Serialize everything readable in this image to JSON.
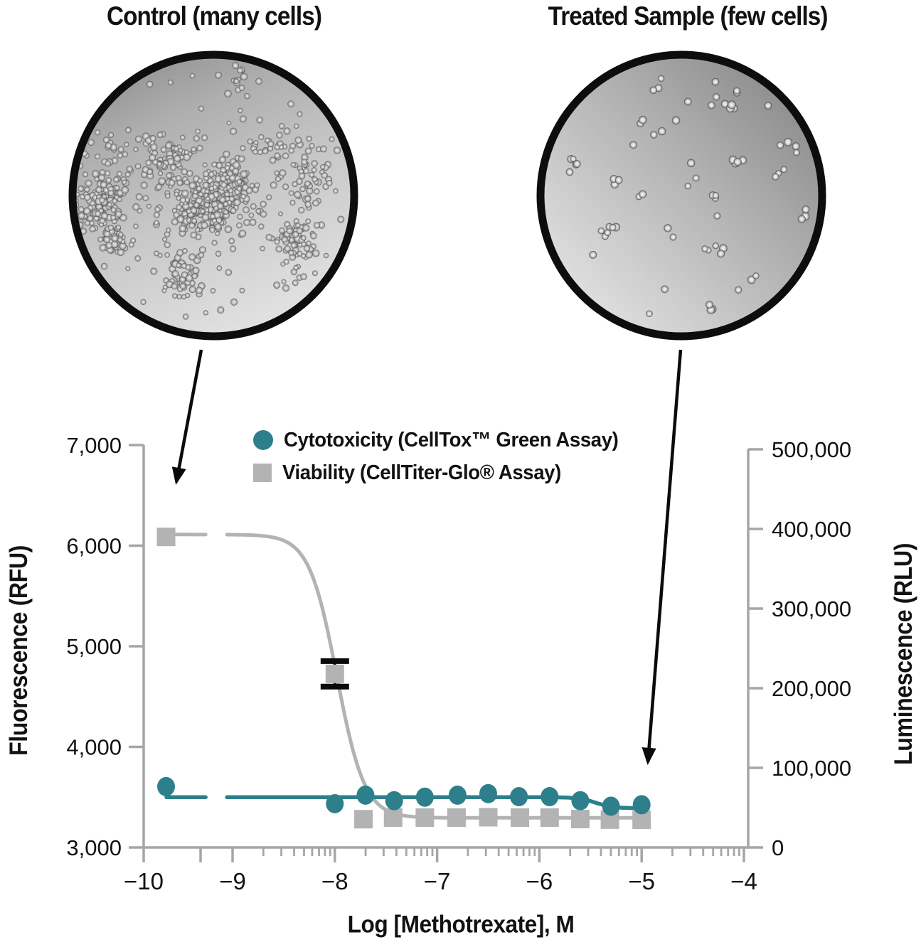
{
  "headers": {
    "control": "Control (many cells)",
    "treated": "Treated Sample (few cells)"
  },
  "legend": {
    "items": [
      {
        "label": "Cytotoxicity (CellTox™ Green Assay)",
        "marker": "circle",
        "color": "#2e7f8c"
      },
      {
        "label": "Viability (CellTiter-Glo® Assay)",
        "marker": "square",
        "color": "#b3b3b3"
      }
    ]
  },
  "chart_data": {
    "type": "scatter",
    "x_axis": {
      "label": "Log [Methotrexate], M",
      "scale": "log10",
      "range": [
        -10,
        -4
      ],
      "tick_values": [
        -10,
        -9,
        -8,
        -7,
        -6,
        -5,
        -4
      ],
      "tick_labels": [
        "−10",
        "−9",
        "−8",
        "−7",
        "−6",
        "−5",
        "−4"
      ],
      "minor_tick_decades": [
        -9,
        -8,
        -7,
        -6,
        -5
      ],
      "axis_break_between": [
        -9.65,
        -9.0
      ]
    },
    "y_left": {
      "label": "Fluorescence (RFU)",
      "range": [
        3000,
        7000
      ],
      "tick_values": [
        3000,
        4000,
        5000,
        6000,
        7000
      ],
      "tick_labels": [
        "3,000",
        "4,000",
        "5,000",
        "6,000",
        "7,000"
      ]
    },
    "y_right": {
      "label": "Luminescence (RLU)",
      "range": [
        0,
        500000
      ],
      "tick_values": [
        0,
        100000,
        200000,
        300000,
        400000,
        500000
      ],
      "tick_labels": [
        "0",
        "100,000",
        "200,000",
        "300,000",
        "400,000",
        "500,000"
      ]
    },
    "series": [
      {
        "name": "Cytotoxicity (CellTox™ Green Assay)",
        "axis": "left",
        "color": "#2e7f8c",
        "marker": "circle",
        "points": [
          [
            -9.65,
            3605
          ],
          [
            -8.0,
            3435
          ],
          [
            -7.7,
            3520
          ],
          [
            -7.42,
            3465
          ],
          [
            -7.12,
            3500
          ],
          [
            -6.8,
            3520
          ],
          [
            -6.5,
            3535
          ],
          [
            -6.2,
            3505
          ],
          [
            -5.9,
            3505
          ],
          [
            -5.6,
            3465
          ],
          [
            -5.3,
            3410
          ],
          [
            -5.0,
            3425
          ]
        ],
        "fit": {
          "top": 3500,
          "bottom": 3390,
          "log_ec50": -5.45,
          "hill": 5
        }
      },
      {
        "name": "Viability (CellTiter-Glo® Assay)",
        "axis": "right",
        "color": "#b3b3b3",
        "marker": "square",
        "points": [
          [
            -9.65,
            390000
          ],
          [
            -8.0,
            218000
          ],
          [
            -7.72,
            35500
          ],
          [
            -7.43,
            37500
          ],
          [
            -7.12,
            37500
          ],
          [
            -6.81,
            37500
          ],
          [
            -6.5,
            38000
          ],
          [
            -6.19,
            37500
          ],
          [
            -5.9,
            37500
          ],
          [
            -5.6,
            35700
          ],
          [
            -5.31,
            35000
          ],
          [
            -5.0,
            34800
          ]
        ],
        "error_bars": [
          {
            "x": -8.0,
            "y": 218000,
            "plus": 16000,
            "minus": 16000
          }
        ],
        "fit": {
          "top": 393000,
          "bottom": 37200,
          "log_ec50": -7.98,
          "hill": 3.2
        }
      }
    ],
    "legend_position": "inside-top-left"
  }
}
